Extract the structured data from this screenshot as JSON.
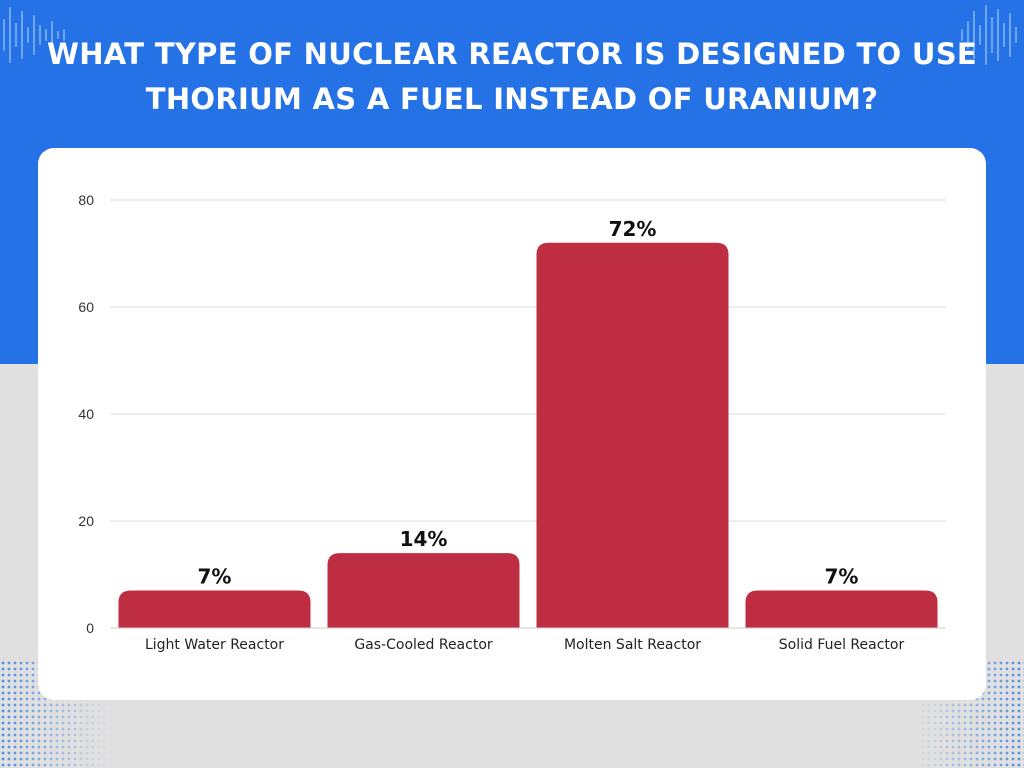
{
  "header": {
    "title": "WHAT TYPE OF NUCLEAR REACTOR IS DESIGNED TO USE THORIUM AS A FUEL INSTEAD OF URANIUM?"
  },
  "colors": {
    "banner": "#2572e6",
    "bottom_background": "#e0e0e0",
    "bar": "#be2d41",
    "grid": "#dddddd",
    "text": "#222222"
  },
  "chart_data": {
    "type": "bar",
    "categories": [
      "Light Water Reactor",
      "Gas-Cooled Reactor",
      "Molten Salt Reactor",
      "Solid Fuel Reactor"
    ],
    "values": [
      7,
      14,
      72,
      7
    ],
    "data_labels": [
      "7%",
      "14%",
      "72%",
      "7%"
    ],
    "yticks": [
      0,
      20,
      40,
      60,
      80
    ],
    "ylim": [
      0,
      80
    ],
    "title": "WHAT TYPE OF NUCLEAR REACTOR IS DESIGNED TO USE THORIUM AS A FUEL INSTEAD OF URANIUM?",
    "xlabel": "",
    "ylabel": "",
    "grid": true,
    "legend": "none"
  }
}
